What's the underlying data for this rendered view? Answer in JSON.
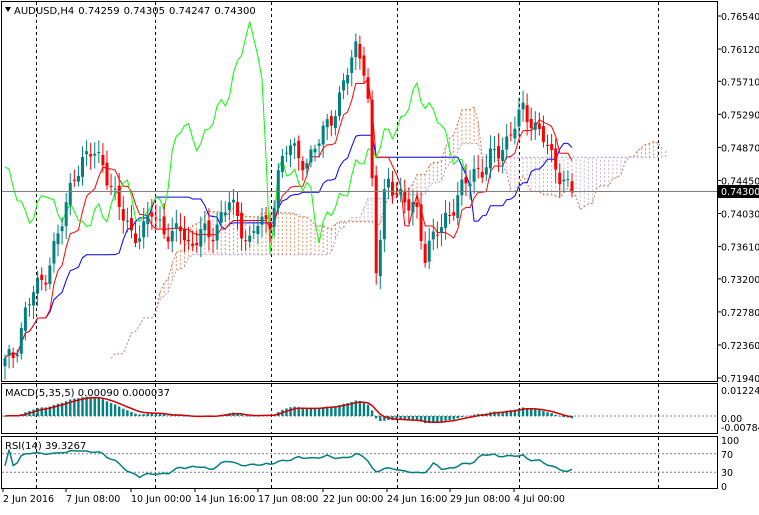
{
  "header": {
    "symbol": "AUDUSD,H4",
    "open": "0.74259",
    "high": "0.74305",
    "low": "0.74247",
    "close": "0.74300"
  },
  "price_axis": {
    "labels": [
      "0.76540",
      "0.76120",
      "0.75710",
      "0.75290",
      "0.74870",
      "0.74450",
      "0.74030",
      "0.73610",
      "0.73200",
      "0.72780",
      "0.72360",
      "0.71940"
    ],
    "current_price": "0.74300"
  },
  "macd": {
    "label": "MACD(5,35,5) 0.00090 0.000037",
    "axis": [
      "0.012247",
      "0.00",
      "-0.007841"
    ]
  },
  "rsi": {
    "label": "RSI(14) 39.3267",
    "axis": [
      "100",
      "70",
      "30",
      "0"
    ]
  },
  "time_axis": {
    "labels": [
      "2 Jun 2016",
      "7 Jun 08:00",
      "10 Jun 00:00",
      "14 Jun 16:00",
      "17 Jun 08:00",
      "22 Jun 00:00",
      "24 Jun 16:00",
      "29 Jun 08:00",
      "4 Jul 00:00"
    ]
  },
  "colors": {
    "bull": "#008080",
    "bear": "#ff0000",
    "tenkan": "#ff0000",
    "kijun": "#0000ff",
    "chikou": "#00ff00",
    "cloud_a": "#d27a4a",
    "cloud_b": "#b4a0c8",
    "macd_hist": "#008080",
    "macd_signal": "#d00000",
    "rsi_line": "#008080"
  },
  "chart_data": {
    "type": "candlestick",
    "symbol": "AUDUSD",
    "timeframe": "H4",
    "ylim": [
      0.7194,
      0.7663
    ],
    "x": [
      "2 Jun 2016",
      "7 Jun 08:00",
      "10 Jun 00:00",
      "14 Jun 16:00",
      "17 Jun 08:00",
      "22 Jun 00:00",
      "24 Jun 16:00",
      "29 Jun 08:00",
      "4 Jul 00:00"
    ],
    "close_path": [
      0.7213,
      0.7225,
      0.7275,
      0.7305,
      0.732,
      0.736,
      0.7395,
      0.7455,
      0.747,
      0.748,
      0.747,
      0.743,
      0.74,
      0.738,
      0.7375,
      0.7405,
      0.739,
      0.737,
      0.7385,
      0.736,
      0.738,
      0.737,
      0.74,
      0.742,
      0.7385,
      0.737,
      0.7395,
      0.738,
      0.746,
      0.749,
      0.7475,
      0.747,
      0.749,
      0.752,
      0.754,
      0.758,
      0.762,
      0.758,
      0.732,
      0.7455,
      0.743,
      0.741,
      0.742,
      0.7345,
      0.7375,
      0.74,
      0.741,
      0.744,
      0.746,
      0.7455,
      0.748,
      0.749,
      0.751,
      0.7535,
      0.752,
      0.75,
      0.747,
      0.745,
      0.743
    ],
    "rsi_last": 39.3267,
    "macd_main": 0.0009,
    "macd_signal": 3.7e-05
  }
}
